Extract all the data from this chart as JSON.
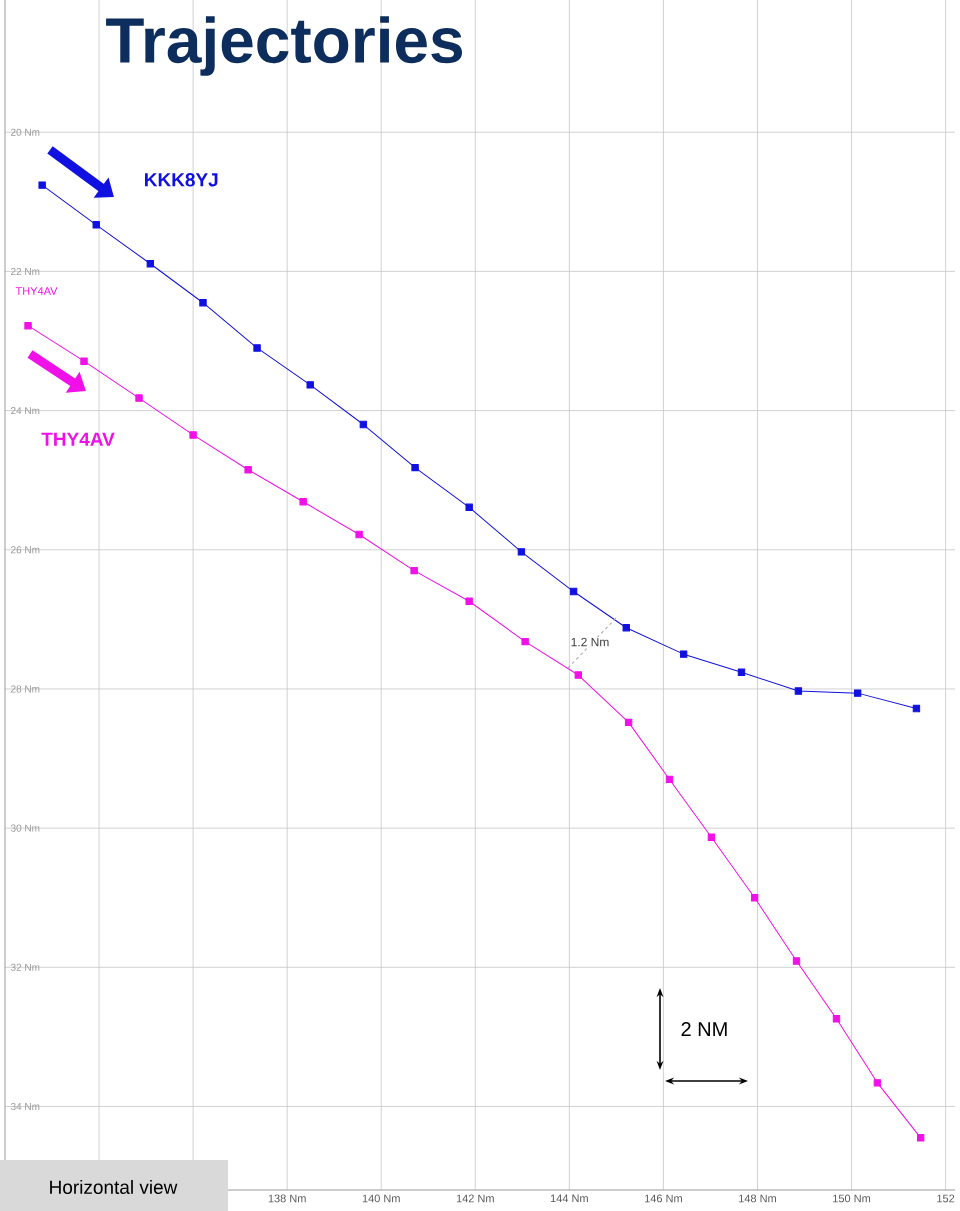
{
  "chart_data": {
    "type": "line",
    "title": "Trajectories",
    "xlim": [
      132,
      152.2
    ],
    "ylim": [
      35.2,
      18.1
    ],
    "xticks": [
      {
        "value": 134,
        "label": null
      },
      {
        "value": 136,
        "label": null
      },
      {
        "value": 138,
        "label": "138 Nm"
      },
      {
        "value": 140,
        "label": "140 Nm"
      },
      {
        "value": 142,
        "label": "142 Nm"
      },
      {
        "value": 144,
        "label": "144 Nm"
      },
      {
        "value": 146,
        "label": "146 Nm"
      },
      {
        "value": 148,
        "label": "148 Nm"
      },
      {
        "value": 150,
        "label": "150 Nm"
      },
      {
        "value": 152,
        "label": "152"
      }
    ],
    "yticks": [
      {
        "value": 20,
        "label": "20 Nm"
      },
      {
        "value": 22,
        "label": "22 Nm"
      },
      {
        "value": 24,
        "label": "24 Nm"
      },
      {
        "value": 26,
        "label": "26 Nm"
      },
      {
        "value": 28,
        "label": "28 Nm"
      },
      {
        "value": 30,
        "label": "30 Nm"
      },
      {
        "value": 32,
        "label": "32 Nm"
      },
      {
        "value": 34,
        "label": "34 Nm"
      }
    ],
    "grid": true,
    "marker": "square",
    "line_style": "solid",
    "series": [
      {
        "name": "KKK8YJ",
        "color": "#1010e0",
        "x": [
          132.79,
          133.94,
          135.09,
          136.21,
          137.36,
          138.49,
          139.62,
          140.72,
          141.87,
          142.98,
          144.09,
          145.21,
          146.43,
          147.66,
          148.87,
          150.13,
          151.38
        ],
        "values": [
          20.76,
          21.33,
          21.89,
          22.45,
          23.1,
          23.63,
          24.2,
          24.82,
          25.39,
          26.03,
          26.6,
          27.12,
          27.5,
          27.76,
          28.03,
          28.06,
          28.28
        ]
      },
      {
        "name": "THY4AV",
        "color": "#f010e8",
        "x": [
          132.49,
          133.68,
          134.85,
          136.0,
          137.17,
          138.34,
          139.53,
          140.7,
          141.87,
          143.06,
          144.19,
          145.26,
          146.13,
          147.02,
          147.94,
          148.83,
          149.68,
          150.55,
          151.47
        ],
        "values": [
          22.78,
          23.29,
          23.82,
          24.35,
          24.85,
          25.31,
          25.78,
          26.3,
          26.74,
          27.32,
          27.8,
          28.48,
          29.3,
          30.13,
          31.0,
          31.91,
          32.74,
          33.66,
          34.45
        ]
      }
    ],
    "annotations": [
      "THY4AV",
      "1.2 Nm",
      "2 NM",
      "Horizontal view"
    ]
  }
}
